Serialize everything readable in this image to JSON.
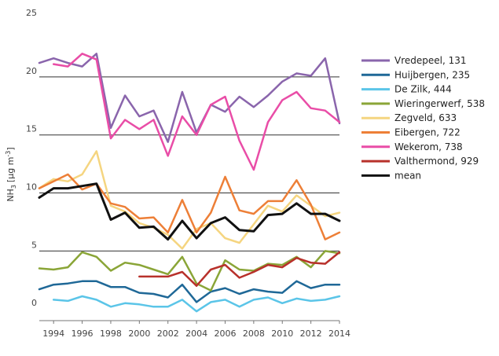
{
  "chart_data": {
    "type": "line",
    "title": "",
    "xlabel": "",
    "ylabel_main": "NH",
    "ylabel_sub": "3",
    "ylabel_unit_open": "[μg m",
    "ylabel_unit_exp": "-3",
    "ylabel_unit_close": "]",
    "xlim": [
      1993,
      2014
    ],
    "ylim": [
      -1,
      25
    ],
    "x_ticks": [
      1994,
      1996,
      1998,
      2000,
      2002,
      2004,
      2006,
      2008,
      2010,
      2012,
      2014
    ],
    "y_ticks": [
      0,
      5,
      10,
      15,
      20,
      25
    ],
    "gridlines": [
      5,
      10,
      15,
      20
    ],
    "legend_position": "right",
    "series": [
      {
        "name": "Vredepeel, 131",
        "color": "#8a65ac",
        "width": 2.5,
        "x": [
          1993,
          1994,
          1995,
          1996,
          1997,
          1998,
          1999,
          2000,
          2001,
          2002,
          2003,
          2004,
          2005,
          2006,
          2007,
          2008,
          2009,
          2010,
          2011,
          2012,
          2013,
          2014
        ],
        "y": [
          21.2,
          21.6,
          21.2,
          20.9,
          22.0,
          15.6,
          18.4,
          16.6,
          17.1,
          14.4,
          18.7,
          15.2,
          17.6,
          17.0,
          18.3,
          17.4,
          18.4,
          19.6,
          20.3,
          20.1,
          21.6,
          16.0
        ]
      },
      {
        "name": "Huijbergen, 235",
        "color": "#1f6897",
        "width": 2.5,
        "x": [
          1993,
          1994,
          1995,
          1996,
          1997,
          1998,
          1999,
          2000,
          2001,
          2002,
          2003,
          2004,
          2005,
          2006,
          2007,
          2008,
          2009,
          2010,
          2011,
          2012,
          2013,
          2014
        ],
        "y": [
          1.7,
          2.1,
          2.2,
          2.4,
          2.4,
          1.9,
          1.9,
          1.4,
          1.3,
          1.0,
          2.1,
          0.6,
          1.5,
          1.8,
          1.3,
          1.7,
          1.5,
          1.4,
          2.4,
          1.8,
          2.1,
          2.1
        ]
      },
      {
        "name": "De Zilk, 444",
        "color": "#5bc5e8",
        "width": 2.5,
        "x": [
          1994,
          1995,
          1996,
          1997,
          1998,
          1999,
          2000,
          2001,
          2002,
          2003,
          2004,
          2005,
          2006,
          2007,
          2008,
          2009,
          2010,
          2011,
          2012,
          2013,
          2014
        ],
        "y": [
          0.8,
          0.7,
          1.1,
          0.8,
          0.2,
          0.5,
          0.4,
          0.2,
          0.2,
          0.8,
          -0.2,
          0.6,
          0.8,
          0.2,
          0.8,
          1.0,
          0.5,
          0.9,
          0.7,
          0.8,
          1.1
        ]
      },
      {
        "name": "Wieringerwerf, 538",
        "color": "#8aa537",
        "width": 2.5,
        "x": [
          1993,
          1994,
          1995,
          1996,
          1997,
          1998,
          1999,
          2000,
          2001,
          2002,
          2003,
          2004,
          2005,
          2006,
          2007,
          2008,
          2009,
          2010,
          2011,
          2012,
          2013,
          2014
        ],
        "y": [
          3.5,
          3.4,
          3.6,
          4.9,
          4.5,
          3.3,
          4.0,
          3.8,
          3.4,
          3.0,
          4.5,
          2.2,
          1.6,
          4.2,
          3.4,
          3.3,
          3.9,
          3.8,
          4.5,
          3.6,
          5.0,
          4.8
        ]
      },
      {
        "name": "Zegveld, 633",
        "color": "#f5d580",
        "width": 2.5,
        "x": [
          1993,
          1994,
          1995,
          1996,
          1997,
          1998,
          1999,
          2000,
          2001,
          2002,
          2003,
          2004,
          2005,
          2006,
          2007,
          2008,
          2009,
          2010,
          2011,
          2012,
          2013,
          2014
        ],
        "y": [
          10.4,
          11.2,
          11.0,
          11.6,
          13.6,
          8.9,
          8.4,
          7.4,
          7.0,
          6.4,
          5.2,
          6.9,
          7.4,
          6.1,
          5.7,
          7.3,
          8.9,
          8.4,
          9.8,
          8.9,
          8.0,
          8.3
        ]
      },
      {
        "name": "Eibergen, 722",
        "color": "#ed7f37",
        "width": 2.5,
        "x": [
          1993,
          1994,
          1995,
          1996,
          1997,
          1998,
          1999,
          2000,
          2001,
          2002,
          2003,
          2004,
          2005,
          2006,
          2007,
          2008,
          2009,
          2010,
          2011,
          2012,
          2013,
          2014
        ],
        "y": [
          10.4,
          11.0,
          11.6,
          10.3,
          10.8,
          9.1,
          8.8,
          7.8,
          7.9,
          6.6,
          9.4,
          6.6,
          8.3,
          11.4,
          8.5,
          8.2,
          9.3,
          9.3,
          11.1,
          9.0,
          6.0,
          6.6
        ]
      },
      {
        "name": "Wekerom, 738",
        "color": "#e94da7",
        "width": 2.5,
        "x": [
          1994,
          1995,
          1996,
          1997,
          1998,
          1999,
          2000,
          2001,
          2002,
          2003,
          2004,
          2005,
          2006,
          2007,
          2008,
          2009,
          2010,
          2011,
          2012,
          2013,
          2014
        ],
        "y": [
          21.1,
          20.9,
          22.0,
          21.5,
          14.7,
          16.3,
          15.5,
          16.3,
          13.2,
          16.6,
          15.0,
          17.6,
          18.3,
          14.5,
          12.0,
          16.1,
          18.0,
          18.7,
          17.3,
          17.1,
          16.1
        ]
      },
      {
        "name": "Valthermond, 929",
        "color": "#b8312b",
        "width": 2.5,
        "x": [
          2000,
          2001,
          2002,
          2003,
          2004,
          2005,
          2006,
          2007,
          2008,
          2009,
          2010,
          2011,
          2012,
          2013,
          2014
        ],
        "y": [
          2.8,
          2.8,
          2.8,
          3.2,
          2.0,
          3.4,
          3.8,
          2.7,
          3.2,
          3.8,
          3.6,
          4.4,
          4.0,
          3.9,
          4.9
        ]
      },
      {
        "name": "mean",
        "color": "#111111",
        "width": 3,
        "x": [
          1993,
          1994,
          1995,
          1996,
          1997,
          1998,
          1999,
          2000,
          2001,
          2002,
          2003,
          2004,
          2005,
          2006,
          2007,
          2008,
          2009,
          2010,
          2011,
          2012,
          2013,
          2014
        ],
        "y": [
          9.6,
          10.4,
          10.4,
          10.6,
          10.8,
          7.7,
          8.3,
          7.0,
          7.1,
          6.0,
          7.6,
          6.1,
          7.4,
          7.9,
          6.8,
          6.7,
          8.1,
          8.2,
          9.1,
          8.2,
          8.2,
          7.6
        ]
      }
    ]
  }
}
